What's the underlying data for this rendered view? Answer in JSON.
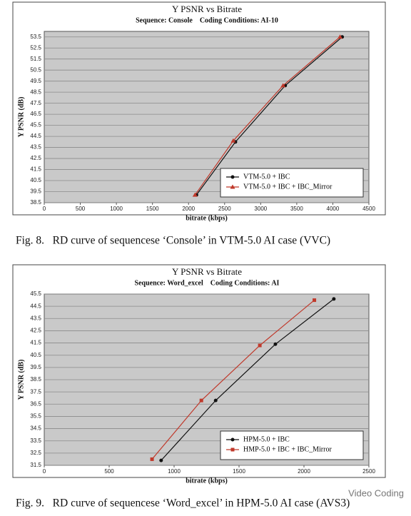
{
  "chart_data": [
    {
      "type": "line",
      "title": "Y PSNR vs Bitrate",
      "subtitle": "Sequence: Console    Coding Conditions: AI-10",
      "x_label": "bitrate (kbps)",
      "y_label": "Y PSNR (dB)",
      "xlim": [
        0,
        4500
      ],
      "xticks": [
        0,
        500,
        1000,
        1500,
        2000,
        2500,
        3000,
        3500,
        4000,
        4500
      ],
      "ylim": [
        38.5,
        54
      ],
      "yticks": [
        38.5,
        39.5,
        40.5,
        41.5,
        42.5,
        43.5,
        44.5,
        45.5,
        46.5,
        47.5,
        48.5,
        49.5,
        50.5,
        51.5,
        52.5,
        53.5
      ],
      "grid": true,
      "legend": "lower right",
      "series": [
        {
          "name": "VTM-5.0 + IBC",
          "color": "#111111",
          "marker": "circle",
          "x": [
            2110,
            2650,
            3340,
            4130
          ],
          "values": [
            39.2,
            44.0,
            49.1,
            53.5
          ]
        },
        {
          "name": "VTM-5.0 + IBC + IBC_Mirror",
          "color": "#c0392b",
          "marker": "triangle",
          "x": [
            2090,
            2620,
            3310,
            4100
          ],
          "values": [
            39.2,
            44.1,
            49.1,
            53.5
          ]
        }
      ],
      "caption": "Fig. 8.   RD curve of sequencese ‘Console’ in VTM-5.0 AI case (VVC)"
    },
    {
      "type": "line",
      "title": "Y PSNR vs Bitrate",
      "subtitle": "Sequence: Word_excel    Coding Conditions: AI",
      "x_label": "bitrate (kbps)",
      "y_label": "Y PSNR (dB)",
      "xlim": [
        0,
        2500
      ],
      "xticks": [
        0,
        500,
        1000,
        1500,
        2000,
        2500
      ],
      "ylim": [
        31.5,
        45.5
      ],
      "yticks": [
        31.5,
        32.5,
        33.5,
        34.5,
        35.5,
        36.5,
        37.5,
        38.5,
        39.5,
        40.5,
        41.5,
        42.5,
        43.5,
        44.5,
        45.5
      ],
      "grid": true,
      "legend": "lower right",
      "series": [
        {
          "name": "HPM-5.0 + IBC",
          "color": "#111111",
          "marker": "circle",
          "x": [
            900,
            1320,
            1780,
            2230
          ],
          "values": [
            31.9,
            36.8,
            41.4,
            45.1
          ]
        },
        {
          "name": "HMP-5.0 + IBC + IBC_Mirror",
          "color": "#c0392b",
          "marker": "square",
          "x": [
            830,
            1210,
            1660,
            2080
          ],
          "values": [
            32.0,
            36.8,
            41.3,
            45.0
          ]
        }
      ],
      "caption": "Fig. 9.   RD curve of sequencese ‘Word_excel’ in HPM-5.0 AI case (AVS3)"
    }
  ],
  "watermark": "Video Coding"
}
